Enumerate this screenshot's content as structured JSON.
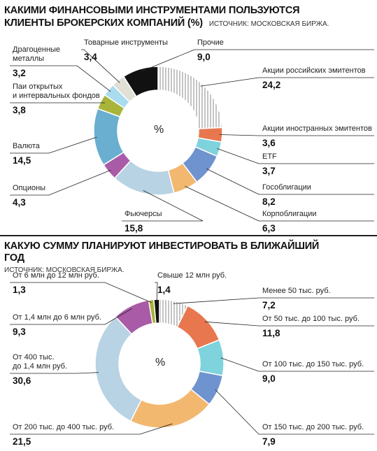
{
  "chart_data": [
    {
      "type": "pie",
      "title": "КАКИМИ ФИНАНСОВЫМИ ИНСТРУМЕНТАМИ ПОЛЬЗУЮТСЯ КЛИЕНТЫ БРОКЕРСКИХ КОМПАНИЙ (%)",
      "source": "ИСТОЧНИК: МОСКОВСКАЯ БИРЖА.",
      "center_label": "%",
      "categories": [
        "Акции российских эмитентов",
        "Акции иностранных эмитентов",
        "ETF",
        "Гособлигации",
        "Корпоблигации",
        "Фьючерсы",
        "Опционы",
        "Валюта",
        "Паи открытых\nи интервальных фондов",
        "Драгоценные\nметаллы",
        "Товарные инструменты",
        "Прочие"
      ],
      "values": [
        24.2,
        3.6,
        3.7,
        8.2,
        6.3,
        15.8,
        4.3,
        14.5,
        3.8,
        3.2,
        3.4,
        9.0
      ],
      "value_labels": [
        "24,2",
        "3,6",
        "3,7",
        "8,2",
        "6,3",
        "15,8",
        "4,3",
        "14,5",
        "3,8",
        "3,2",
        "3,4",
        "9,0"
      ],
      "colors": [
        "#8a8a8a",
        "#e8774f",
        "#7fd3dc",
        "#6f93cf",
        "#f2b870",
        "#b8d3e3",
        "#a95ba8",
        "#6aaed0",
        "#a8b43a",
        "#a9dcef",
        "#e0e0d6",
        "#111111"
      ],
      "hatched_first": true
    },
    {
      "type": "pie",
      "title": "КАКУЮ СУММУ ПЛАНИРУЮТ ИНВЕСТИРОВАТЬ В БЛИЖАЙШИЙ ГОД",
      "source": "ИСТОЧНИК: МОСКОВСКАЯ БИРЖА.",
      "center_label": "%",
      "categories": [
        "Менее 50 тыс. руб.",
        "От 50 тыс. до 100 тыс. руб.",
        "От 100 тыс. до 150 тыс. руб.",
        "От 150 тыс. до 200 тыс. руб.",
        "От 200 тыс. до 400 тыс. руб.",
        "От 400 тыс.\nдо 1,4 млн руб.",
        "От 1,4 млн до 6 млн руб.",
        "От 6 млн до 12 млн руб.",
        "Свыше 12 млн руб."
      ],
      "values": [
        7.2,
        11.8,
        9.0,
        7.9,
        21.5,
        30.6,
        9.3,
        1.3,
        1.4
      ],
      "value_labels": [
        "7,2",
        "11,8",
        "9,0",
        "7,9",
        "21,5",
        "30,6",
        "9,3",
        "1,3",
        "1,4"
      ],
      "colors": [
        "#8a8a8a",
        "#e8774f",
        "#7fd3dc",
        "#6f93cf",
        "#f2b870",
        "#b8d3e3",
        "#a95ba8",
        "#a8b43a",
        "#111111"
      ],
      "hatched_first": true
    }
  ]
}
